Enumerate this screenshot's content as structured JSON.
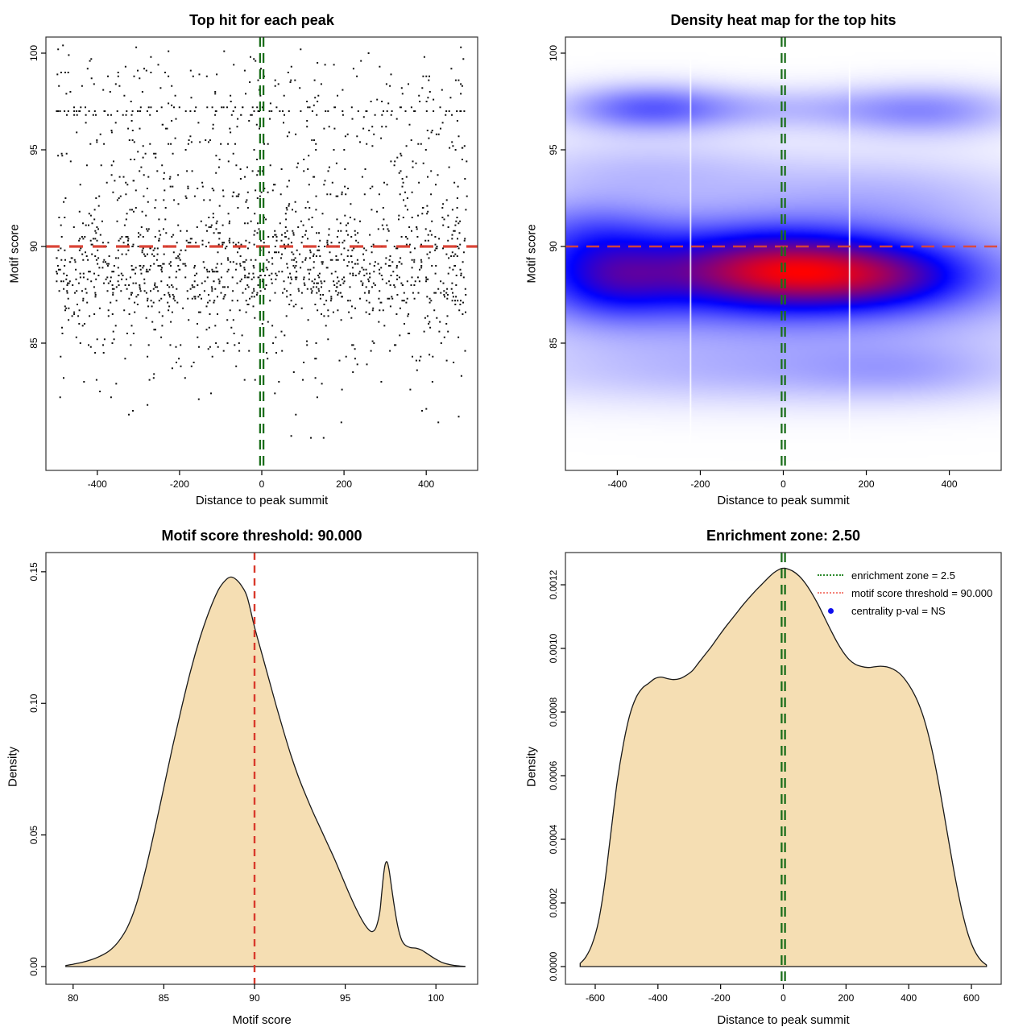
{
  "figure_background": "#ffffff",
  "colors": {
    "frame": "#333333",
    "point": "#111111",
    "enrichment_line_green": "#1b6e1b",
    "threshold_line_red": "#d93a2c",
    "heatmap_threshold_red": "#df4733",
    "density_fill_wheat": "#f5deb3",
    "density_stroke": "#1a1a1a",
    "legend_green": "#2d8b2d",
    "legend_salmon": "#f4837a",
    "legend_blue": "#0d0dee",
    "heat_palette": [
      "#ffffff",
      "#0000ff",
      "#ff0000"
    ]
  },
  "chart_data": [
    {
      "id": "top_hits_scatter",
      "type": "scatter",
      "title": "Top hit for each peak",
      "xlabel": "Distance to peak summit",
      "ylabel": "Motif score",
      "xlim": [
        -525,
        525
      ],
      "ylim": [
        78.417,
        100.833
      ],
      "xticks": {
        "values": [
          -400,
          -200,
          0,
          200,
          400
        ],
        "labels": [
          "-400",
          "-200",
          "0",
          "200",
          "400"
        ]
      },
      "yticks": {
        "values": [
          85,
          90,
          95,
          100
        ],
        "labels": [
          "85",
          "90",
          "95",
          "100"
        ]
      },
      "grid": false,
      "n_points": 1800,
      "seed": 42,
      "x_range": [
        -500,
        500
      ],
      "y_quantum": 0.1,
      "y_mixture": [
        {
          "type": "normal",
          "w": 0.26,
          "mean": 88.2,
          "sd": 0.95,
          "clip": [
            85.5,
            90.4
          ]
        },
        {
          "type": "normal",
          "w": 0.16,
          "mean": 89.7,
          "sd": 0.9,
          "clip": [
            87.2,
            91.6
          ]
        },
        {
          "type": "normal",
          "w": 0.13,
          "mean": 91.4,
          "sd": 1.1,
          "clip": [
            89.9,
            94.6
          ]
        },
        {
          "type": "normal",
          "w": 0.1,
          "mean": 87.0,
          "sd": 1.1,
          "clip": [
            84.6,
            89.4
          ]
        },
        {
          "type": "uniform",
          "w": 0.08,
          "range": [
            92.4,
            95.4
          ]
        },
        {
          "type": "choice",
          "w": 0.075,
          "values": [
            96.85,
            97.0,
            97.15
          ],
          "probs": [
            0.3,
            0.45,
            0.25
          ]
        },
        {
          "type": "uniform",
          "w": 0.05,
          "range": [
            95.2,
            96.7
          ]
        },
        {
          "type": "uniform",
          "w": 0.05,
          "range": [
            97.3,
            99.2
          ]
        },
        {
          "type": "normal",
          "w": 0.035,
          "mean": 85.2,
          "sd": 0.8,
          "clip": [
            83.4,
            86.4
          ]
        },
        {
          "type": "uniform",
          "w": 0.03,
          "range": [
            82.8,
            85.0
          ]
        },
        {
          "type": "uniform",
          "w": 0.02,
          "range": [
            98.8,
            100.4
          ]
        },
        {
          "type": "uniform",
          "w": 0.01,
          "range": [
            79.8,
            83.0
          ]
        }
      ],
      "vline": {
        "value": 0,
        "color_key": "enrichment_line_green",
        "style": "dashed-double"
      },
      "hline": {
        "value": 90,
        "color_key": "threshold_line_red",
        "style": "dashed"
      }
    },
    {
      "id": "density_heatmap",
      "type": "heatmap",
      "title": "Density heat map for the top hits",
      "xlabel": "Distance to peak summit",
      "ylabel": "Motif score",
      "xlim": [
        -525,
        525
      ],
      "ylim": [
        78.417,
        100.833
      ],
      "xticks": {
        "values": [
          -400,
          -200,
          0,
          200,
          400
        ],
        "labels": [
          "-400",
          "-200",
          "0",
          "200",
          "400"
        ]
      },
      "yticks": {
        "values": [
          85,
          90,
          95,
          100
        ],
        "labels": [
          "85",
          "90",
          "95",
          "100"
        ]
      },
      "blobs": [
        {
          "x": -15,
          "y": 88.75,
          "sx": 170,
          "sy": 1.3,
          "a": 0.95
        },
        {
          "x": 245,
          "y": 88.45,
          "sx": 160,
          "sy": 1.2,
          "a": 0.72
        },
        {
          "x": -100,
          "y": 88.8,
          "sx": 330,
          "sy": 1.7,
          "a": 0.5
        },
        {
          "x": -415,
          "y": 88.3,
          "sx": 115,
          "sy": 1.45,
          "a": 0.62
        },
        {
          "x": 0,
          "y": 88.4,
          "sx": 520,
          "sy": 2.8,
          "a": 0.55
        },
        {
          "x": -330,
          "y": 97.15,
          "sx": 140,
          "sy": 0.85,
          "a": 0.6
        },
        {
          "x": 30,
          "y": 97.1,
          "sx": 280,
          "sy": 0.8,
          "a": 0.26
        },
        {
          "x": 355,
          "y": 97.0,
          "sx": 150,
          "sy": 0.95,
          "a": 0.38
        },
        {
          "x": -340,
          "y": 94.0,
          "sx": 240,
          "sy": 1.15,
          "a": 0.22
        },
        {
          "x": 260,
          "y": 92.9,
          "sx": 240,
          "sy": 1.4,
          "a": 0.18
        },
        {
          "x": -60,
          "y": 83.4,
          "sx": 480,
          "sy": 1.15,
          "a": 0.22
        },
        {
          "x": 290,
          "y": 83.6,
          "sx": 170,
          "sy": 1.05,
          "a": 0.16
        },
        {
          "x": -480,
          "y": 90.8,
          "sx": 130,
          "sy": 1.3,
          "a": 0.35
        }
      ],
      "white_lines_x": [
        -225,
        158
      ],
      "vline": {
        "value": 0,
        "color_key": "enrichment_line_green",
        "style": "dashed-double"
      },
      "hline": {
        "value": 90,
        "color_key": "heatmap_threshold_red",
        "style": "dashed"
      }
    },
    {
      "id": "motif_score_density",
      "type": "area",
      "title": "Motif score threshold: 90.000",
      "xlabel": "Motif score",
      "ylabel": "Density",
      "xlim": [
        78.5,
        102.3
      ],
      "ylim": [
        -0.00673,
        0.1573
      ],
      "xticks": {
        "values": [
          80,
          85,
          90,
          95,
          100
        ],
        "labels": [
          "80",
          "85",
          "90",
          "95",
          "100"
        ]
      },
      "yticks": {
        "values": [
          0,
          0.05,
          0.1,
          0.15
        ],
        "labels": [
          "0.00",
          "0.05",
          "0.10",
          "0.15"
        ]
      },
      "vline": {
        "value": 90,
        "color_key": "threshold_line_red",
        "style": "dashed"
      },
      "curve": [
        [
          79.6,
          0.0004
        ],
        [
          80.0,
          0.0009
        ],
        [
          80.5,
          0.0016
        ],
        [
          81.0,
          0.0026
        ],
        [
          81.5,
          0.004
        ],
        [
          82.0,
          0.006
        ],
        [
          82.5,
          0.0095
        ],
        [
          83.0,
          0.015
        ],
        [
          83.5,
          0.024
        ],
        [
          84.0,
          0.037
        ],
        [
          84.5,
          0.052
        ],
        [
          85.0,
          0.068
        ],
        [
          85.5,
          0.084
        ],
        [
          86.0,
          0.099
        ],
        [
          86.5,
          0.113
        ],
        [
          87.0,
          0.125
        ],
        [
          87.5,
          0.135
        ],
        [
          88.0,
          0.143
        ],
        [
          88.4,
          0.1468
        ],
        [
          88.7,
          0.148
        ],
        [
          89.0,
          0.147
        ],
        [
          89.3,
          0.1445
        ],
        [
          89.6,
          0.1403
        ],
        [
          90.0,
          0.129
        ],
        [
          90.4,
          0.119
        ],
        [
          90.8,
          0.109
        ],
        [
          91.2,
          0.099
        ],
        [
          91.6,
          0.0895
        ],
        [
          92.0,
          0.0805
        ],
        [
          92.4,
          0.0725
        ],
        [
          92.8,
          0.0655
        ],
        [
          93.2,
          0.059
        ],
        [
          93.6,
          0.053
        ],
        [
          94.0,
          0.047
        ],
        [
          94.4,
          0.041
        ],
        [
          94.8,
          0.0345
        ],
        [
          95.2,
          0.028
        ],
        [
          95.6,
          0.022
        ],
        [
          96.0,
          0.0168
        ],
        [
          96.3,
          0.014
        ],
        [
          96.5,
          0.0133
        ],
        [
          96.7,
          0.0149
        ],
        [
          96.9,
          0.0205
        ],
        [
          97.0,
          0.027
        ],
        [
          97.1,
          0.034
        ],
        [
          97.2,
          0.0387
        ],
        [
          97.3,
          0.0398
        ],
        [
          97.4,
          0.0374
        ],
        [
          97.5,
          0.0328
        ],
        [
          97.7,
          0.0232
        ],
        [
          97.9,
          0.0152
        ],
        [
          98.1,
          0.0103
        ],
        [
          98.3,
          0.0082
        ],
        [
          98.6,
          0.0072
        ],
        [
          98.9,
          0.007
        ],
        [
          99.2,
          0.0063
        ],
        [
          99.5,
          0.005
        ],
        [
          99.8,
          0.0036
        ],
        [
          100.1,
          0.0024
        ],
        [
          100.4,
          0.0014
        ],
        [
          100.8,
          0.0007
        ],
        [
          101.2,
          0.0003
        ],
        [
          101.6,
          0.0001
        ]
      ]
    },
    {
      "id": "summit_distance_density",
      "type": "area",
      "title": "Enrichment zone: 2.50",
      "xlabel": "Distance to peak summit",
      "ylabel": "Density",
      "xlim": [
        -695,
        695
      ],
      "ylim": [
        -5.57e-05,
        0.0013013
      ],
      "xticks": {
        "values": [
          -600,
          -400,
          -200,
          0,
          200,
          400,
          600
        ],
        "labels": [
          "-600",
          "-400",
          "-200",
          "0",
          "200",
          "400",
          "600"
        ]
      },
      "yticks": {
        "values": [
          0,
          0.0002,
          0.0004,
          0.0006,
          0.0008,
          0.001,
          0.0012
        ],
        "labels": [
          "0.0000",
          "0.0002",
          "0.0004",
          "0.0006",
          "0.0008",
          "0.0010",
          "0.0012"
        ]
      },
      "vline": {
        "value": 0,
        "color_key": "enrichment_line_green",
        "style": "dashed-double"
      },
      "legend": [
        {
          "marker": "dotted-line",
          "color_key": "legend_green",
          "label": "enrichment zone = 2.5"
        },
        {
          "marker": "dotted-line",
          "color_key": "legend_salmon",
          "label": "motif score threshold = 90.000"
        },
        {
          "marker": "dot",
          "color_key": "legend_blue",
          "label": "centrality p-val = NS"
        }
      ],
      "curve": [
        [
          -648,
          1e-05
        ],
        [
          -630,
          3e-05
        ],
        [
          -610,
          7e-05
        ],
        [
          -590,
          0.00014
        ],
        [
          -570,
          0.00026
        ],
        [
          -550,
          0.00042
        ],
        [
          -530,
          0.00058
        ],
        [
          -510,
          0.0007
        ],
        [
          -490,
          0.00079
        ],
        [
          -470,
          0.000845
        ],
        [
          -450,
          0.000875
        ],
        [
          -430,
          0.00089
        ],
        [
          -410,
          0.000905
        ],
        [
          -390,
          0.00091
        ],
        [
          -370,
          0.000905
        ],
        [
          -350,
          0.000902
        ],
        [
          -330,
          0.000905
        ],
        [
          -310,
          0.000915
        ],
        [
          -290,
          0.00093
        ],
        [
          -270,
          0.000955
        ],
        [
          -250,
          0.00098
        ],
        [
          -230,
          0.001005
        ],
        [
          -210,
          0.001033
        ],
        [
          -190,
          0.00106
        ],
        [
          -170,
          0.001085
        ],
        [
          -150,
          0.00111
        ],
        [
          -130,
          0.001135
        ],
        [
          -110,
          0.001158
        ],
        [
          -90,
          0.00118
        ],
        [
          -70,
          0.0012
        ],
        [
          -50,
          0.00122
        ],
        [
          -30,
          0.001238
        ],
        [
          -10,
          0.00125
        ],
        [
          0,
          0.001252
        ],
        [
          10,
          0.001251
        ],
        [
          30,
          0.001243
        ],
        [
          50,
          0.001228
        ],
        [
          70,
          0.001205
        ],
        [
          90,
          0.001175
        ],
        [
          110,
          0.00114
        ],
        [
          130,
          0.0011
        ],
        [
          150,
          0.00106
        ],
        [
          170,
          0.001022
        ],
        [
          190,
          0.00099
        ],
        [
          210,
          0.000965
        ],
        [
          230,
          0.00095
        ],
        [
          250,
          0.000943
        ],
        [
          270,
          0.00094
        ],
        [
          290,
          0.000942
        ],
        [
          310,
          0.000944
        ],
        [
          330,
          0.000942
        ],
        [
          350,
          0.000935
        ],
        [
          370,
          0.000922
        ],
        [
          390,
          0.0009
        ],
        [
          410,
          0.00087
        ],
        [
          430,
          0.00083
        ],
        [
          450,
          0.000775
        ],
        [
          470,
          0.0007
        ],
        [
          490,
          0.000605
        ],
        [
          510,
          0.000495
        ],
        [
          530,
          0.00038
        ],
        [
          550,
          0.00027
        ],
        [
          570,
          0.000175
        ],
        [
          590,
          0.0001
        ],
        [
          610,
          5e-05
        ],
        [
          630,
          2e-05
        ],
        [
          648,
          5e-06
        ]
      ]
    }
  ]
}
